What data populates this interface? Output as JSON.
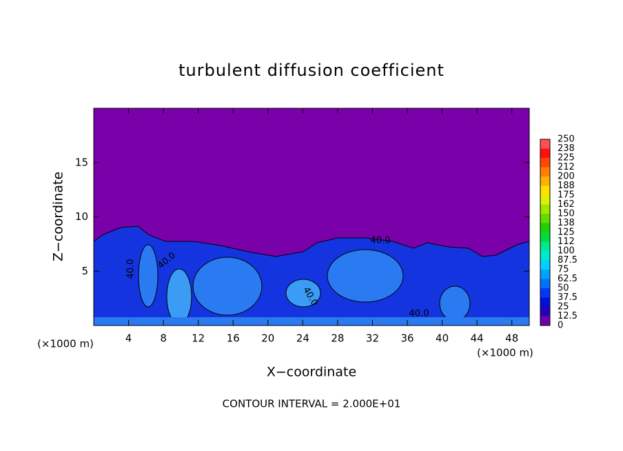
{
  "chart_data": {
    "type": "contour",
    "title": "turbulent diffusion coefficient",
    "x_label": "X−coordinate",
    "y_label": "Z−coordinate",
    "x_unit": "(×1000 m)",
    "footnote": "CONTOUR INTERVAL = 2.000E+01",
    "annotations": [
      "40.0",
      "40.0",
      "40.0",
      "40.0",
      "40.0"
    ],
    "xlim": [
      0,
      50
    ],
    "xticks": [
      4,
      8,
      12,
      16,
      20,
      24,
      28,
      32,
      36,
      40,
      44,
      48
    ],
    "ylim": [
      0,
      20
    ],
    "yticks": [
      5,
      10,
      15
    ],
    "colorbar": {
      "levels": [
        0,
        12.5,
        25,
        37.5,
        50,
        62.5,
        75,
        87.5,
        100,
        112,
        125,
        138,
        150,
        162,
        175,
        188,
        200,
        212,
        225,
        238,
        250
      ],
      "colors": [
        "#7000a8",
        "#2400b8",
        "#0010d8",
        "#0038f8",
        "#0070ff",
        "#00a0ff",
        "#00d0ff",
        "#00e8d0",
        "#00e890",
        "#00dc40",
        "#20d000",
        "#60dc00",
        "#a0e800",
        "#e0f000",
        "#ffe000",
        "#ffb000",
        "#ff8000",
        "#ff4800",
        "#ff1010",
        "#ff5050"
      ]
    }
  }
}
